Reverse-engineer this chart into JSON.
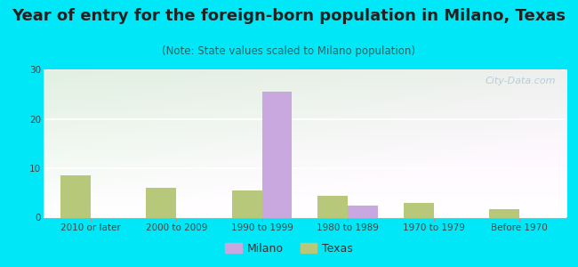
{
  "title": "Year of entry for the foreign-born population in Milano, Texas",
  "subtitle": "(Note: State values scaled to Milano population)",
  "categories": [
    "2010 or later",
    "2000 to 2009",
    "1990 to 1999",
    "1980 to 1989",
    "1970 to 1979",
    "Before 1970"
  ],
  "milano_values": [
    0,
    0,
    25.5,
    2.5,
    0,
    0
  ],
  "texas_values": [
    8.5,
    6.0,
    5.5,
    4.5,
    3.0,
    1.8
  ],
  "milano_color": "#c9a8e0",
  "texas_color": "#b8c87a",
  "bg_color": "#00e8f8",
  "ylim": [
    0,
    30
  ],
  "yticks": [
    0,
    10,
    20,
    30
  ],
  "bar_width": 0.35,
  "title_fontsize": 13,
  "subtitle_fontsize": 8.5,
  "tick_fontsize": 7.5,
  "legend_fontsize": 9,
  "watermark_text": "City-Data.com",
  "watermark_color": "#b8cdd8",
  "plot_bg_top_left": "#d8edd8",
  "plot_bg_top_right": "#eaf5f0",
  "plot_bg_bottom": "#f5fff8"
}
